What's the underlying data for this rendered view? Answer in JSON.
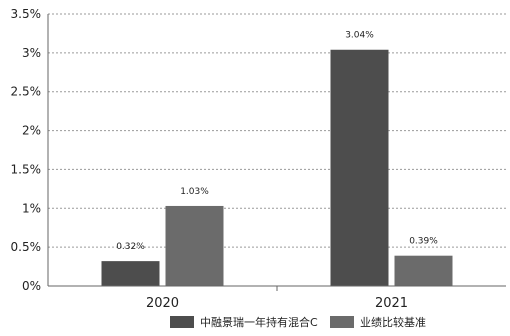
{
  "chart_data": {
    "type": "bar",
    "categories": [
      "2020",
      "2021"
    ],
    "series": [
      {
        "name": "中融景瑞一年持有混合C",
        "values": [
          0.32,
          3.04
        ],
        "labels": [
          "0.32%",
          "3.04%"
        ],
        "color": "#4d4d4d"
      },
      {
        "name": "业绩比较基准",
        "values": [
          1.03,
          0.39
        ],
        "labels": [
          "1.03%",
          "0.39%"
        ],
        "color": "#6b6b6b"
      }
    ],
    "yticks": [
      "0%",
      "0.5%",
      "1%",
      "1.5%",
      "2%",
      "2.5%",
      "3%",
      "3.5%"
    ],
    "ylim": [
      0,
      3.5
    ],
    "grid": true,
    "legend_position": "bottom"
  }
}
